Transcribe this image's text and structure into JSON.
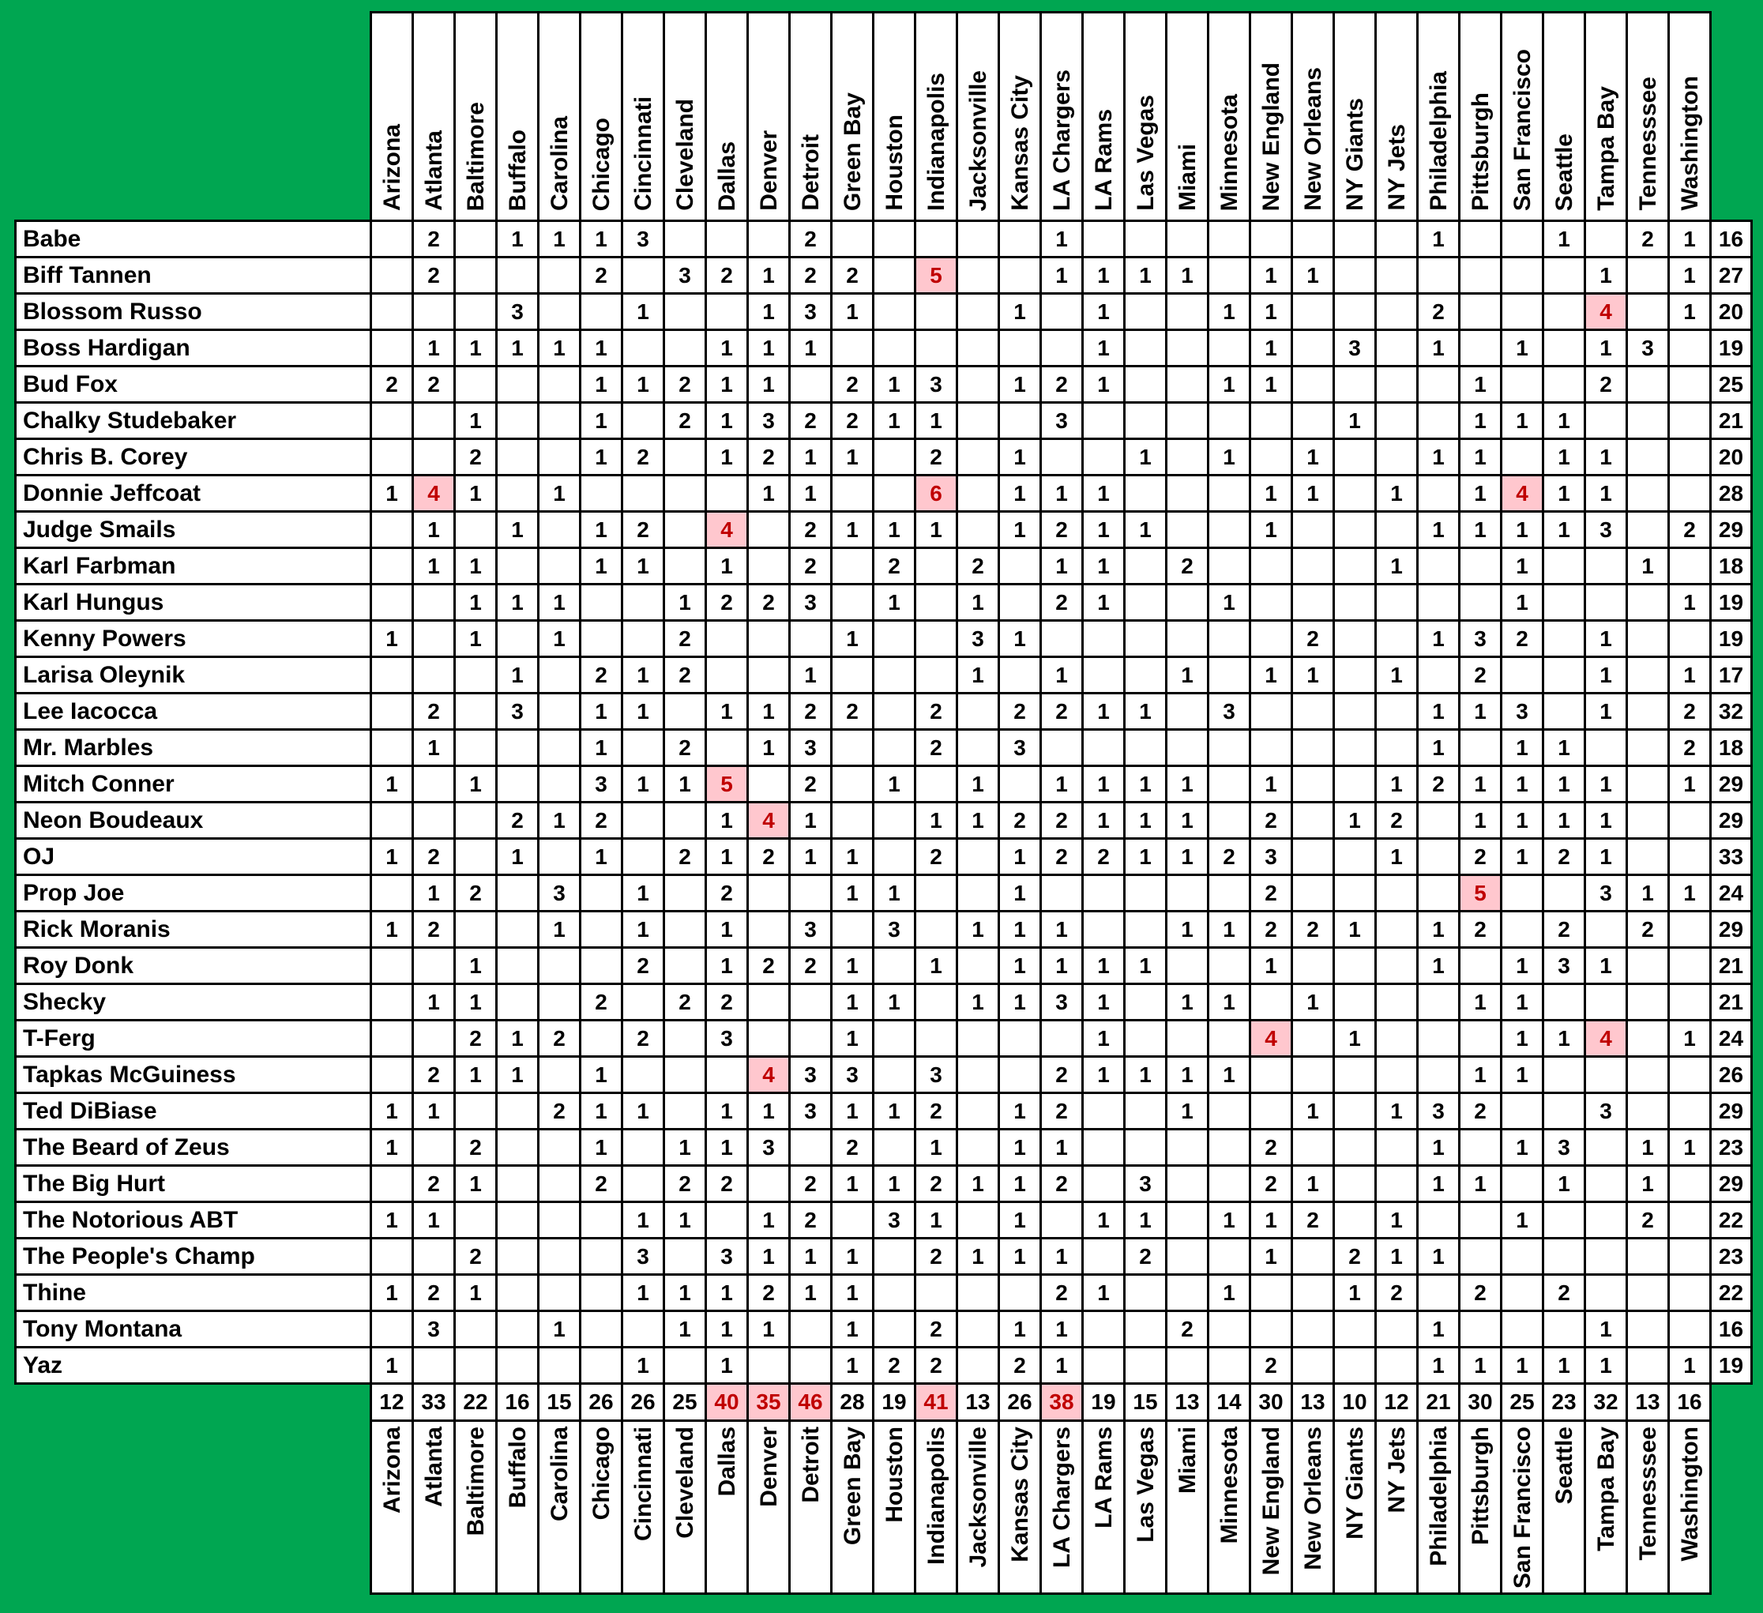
{
  "colors": {
    "background_green": "#00A651",
    "grid_line": "#000000",
    "cell_bg": "#FFFFFF",
    "highlight_bg": "#FFC7CE",
    "highlight_text": "#C00000",
    "text": "#000000"
  },
  "table": {
    "teams": [
      "Arizona",
      "Atlanta",
      "Baltimore",
      "Buffalo",
      "Carolina",
      "Chicago",
      "Cincinnati",
      "Cleveland",
      "Dallas",
      "Denver",
      "Detroit",
      "Green Bay",
      "Houston",
      "Indianapolis",
      "Jacksonville",
      "Kansas City",
      "LA Chargers",
      "LA Rams",
      "Las Vegas",
      "Miami",
      "Minnesota",
      "New England",
      "New Orleans",
      "NY Giants",
      "NY Jets",
      "Philadelphia",
      "Pittsburgh",
      "San Francisco",
      "Seattle",
      "Tampa Bay",
      "Tennesssee",
      "Washington"
    ],
    "players": [
      "Babe",
      "Biff Tannen",
      "Blossom Russo",
      "Boss Hardigan",
      "Bud Fox",
      "Chalky Studebaker",
      "Chris B. Corey",
      "Donnie Jeffcoat",
      "Judge Smails",
      "Karl Farbman",
      "Karl Hungus",
      "Kenny Powers",
      "Larisa Oleynik",
      "Lee Iacocca",
      "Mr. Marbles",
      "Mitch Conner",
      "Neon Boudeaux",
      "OJ",
      "Prop Joe",
      "Rick Moranis",
      "Roy Donk",
      "Shecky",
      "T-Ferg",
      "Tapkas McGuiness",
      "Ted DiBiase",
      "The Beard of Zeus",
      "The Big Hurt",
      "The Notorious ABT",
      "The People's Champ",
      "Thine",
      "Tony Montana",
      "Yaz"
    ],
    "matrix": [
      [
        0,
        2,
        0,
        1,
        1,
        1,
        3,
        0,
        0,
        0,
        2,
        0,
        0,
        0,
        0,
        0,
        1,
        0,
        0,
        0,
        0,
        0,
        0,
        0,
        0,
        1,
        0,
        0,
        1,
        0,
        2,
        1
      ],
      [
        0,
        2,
        0,
        0,
        0,
        2,
        0,
        3,
        2,
        1,
        2,
        2,
        0,
        5,
        0,
        0,
        1,
        1,
        1,
        1,
        0,
        1,
        1,
        0,
        0,
        0,
        0,
        0,
        0,
        1,
        0,
        1
      ],
      [
        0,
        0,
        0,
        3,
        0,
        0,
        1,
        0,
        0,
        1,
        3,
        1,
        0,
        0,
        0,
        1,
        0,
        1,
        0,
        0,
        1,
        1,
        0,
        0,
        0,
        2,
        0,
        0,
        0,
        4,
        0,
        1
      ],
      [
        0,
        1,
        1,
        1,
        1,
        1,
        0,
        0,
        1,
        1,
        1,
        0,
        0,
        0,
        0,
        0,
        0,
        1,
        0,
        0,
        0,
        1,
        0,
        3,
        0,
        1,
        0,
        1,
        0,
        1,
        3,
        0
      ],
      [
        2,
        2,
        0,
        0,
        0,
        1,
        1,
        2,
        1,
        1,
        0,
        2,
        1,
        3,
        0,
        1,
        2,
        1,
        0,
        0,
        1,
        1,
        0,
        0,
        0,
        0,
        1,
        0,
        0,
        2,
        0,
        0
      ],
      [
        0,
        0,
        1,
        0,
        0,
        1,
        0,
        2,
        1,
        3,
        2,
        2,
        1,
        1,
        0,
        0,
        3,
        0,
        0,
        0,
        0,
        0,
        0,
        1,
        0,
        0,
        1,
        1,
        1,
        0,
        0,
        0
      ],
      [
        0,
        0,
        2,
        0,
        0,
        1,
        2,
        0,
        1,
        2,
        1,
        1,
        0,
        2,
        0,
        1,
        0,
        0,
        1,
        0,
        1,
        0,
        1,
        0,
        0,
        1,
        1,
        0,
        1,
        1,
        0,
        0
      ],
      [
        1,
        4,
        1,
        0,
        1,
        0,
        0,
        0,
        0,
        1,
        1,
        0,
        0,
        6,
        0,
        1,
        1,
        1,
        0,
        0,
        0,
        1,
        1,
        0,
        1,
        0,
        1,
        4,
        1,
        1,
        0,
        0
      ],
      [
        0,
        1,
        0,
        1,
        0,
        1,
        2,
        0,
        4,
        0,
        2,
        1,
        1,
        1,
        0,
        1,
        2,
        1,
        1,
        0,
        0,
        1,
        0,
        0,
        0,
        1,
        1,
        1,
        1,
        3,
        0,
        2
      ],
      [
        0,
        1,
        1,
        0,
        0,
        1,
        1,
        0,
        1,
        0,
        2,
        0,
        2,
        0,
        2,
        0,
        1,
        1,
        0,
        2,
        0,
        0,
        0,
        0,
        1,
        0,
        0,
        1,
        0,
        0,
        1,
        0
      ],
      [
        0,
        0,
        1,
        1,
        1,
        0,
        0,
        1,
        2,
        2,
        3,
        0,
        1,
        0,
        1,
        0,
        2,
        1,
        0,
        0,
        1,
        0,
        0,
        0,
        0,
        0,
        0,
        1,
        0,
        0,
        0,
        1
      ],
      [
        1,
        0,
        1,
        0,
        1,
        0,
        0,
        2,
        0,
        0,
        0,
        1,
        0,
        0,
        3,
        1,
        0,
        0,
        0,
        0,
        0,
        0,
        2,
        0,
        0,
        1,
        3,
        2,
        0,
        1,
        0,
        0
      ],
      [
        0,
        0,
        0,
        1,
        0,
        2,
        1,
        2,
        0,
        0,
        1,
        0,
        0,
        0,
        1,
        0,
        1,
        0,
        0,
        1,
        0,
        1,
        1,
        0,
        1,
        0,
        2,
        0,
        0,
        1,
        0,
        1
      ],
      [
        0,
        2,
        0,
        3,
        0,
        1,
        1,
        0,
        1,
        1,
        2,
        2,
        0,
        2,
        0,
        2,
        2,
        1,
        1,
        0,
        3,
        0,
        0,
        0,
        0,
        1,
        1,
        3,
        0,
        1,
        0,
        2
      ],
      [
        0,
        1,
        0,
        0,
        0,
        1,
        0,
        2,
        0,
        1,
        3,
        0,
        0,
        2,
        0,
        3,
        0,
        0,
        0,
        0,
        0,
        0,
        0,
        0,
        0,
        1,
        0,
        1,
        1,
        0,
        0,
        2
      ],
      [
        1,
        0,
        1,
        0,
        0,
        3,
        1,
        1,
        5,
        0,
        2,
        0,
        1,
        0,
        1,
        0,
        1,
        1,
        1,
        1,
        0,
        1,
        0,
        0,
        1,
        2,
        1,
        1,
        1,
        1,
        0,
        1
      ],
      [
        0,
        0,
        0,
        2,
        1,
        2,
        0,
        0,
        1,
        4,
        1,
        0,
        0,
        1,
        1,
        2,
        2,
        1,
        1,
        1,
        0,
        2,
        0,
        1,
        2,
        0,
        1,
        1,
        1,
        1,
        0,
        0
      ],
      [
        1,
        2,
        0,
        1,
        0,
        1,
        0,
        2,
        1,
        2,
        1,
        1,
        0,
        2,
        0,
        1,
        2,
        2,
        1,
        1,
        2,
        3,
        0,
        0,
        1,
        0,
        2,
        1,
        2,
        1,
        0,
        0
      ],
      [
        0,
        1,
        2,
        0,
        3,
        0,
        1,
        0,
        2,
        0,
        0,
        1,
        1,
        0,
        0,
        1,
        0,
        0,
        0,
        0,
        0,
        2,
        0,
        0,
        0,
        0,
        5,
        0,
        0,
        3,
        1,
        1
      ],
      [
        1,
        2,
        0,
        0,
        1,
        0,
        1,
        0,
        1,
        0,
        3,
        0,
        3,
        0,
        1,
        1,
        1,
        0,
        0,
        1,
        1,
        2,
        2,
        1,
        0,
        1,
        2,
        0,
        2,
        0,
        2,
        0
      ],
      [
        0,
        0,
        1,
        0,
        0,
        0,
        2,
        0,
        1,
        2,
        2,
        1,
        0,
        1,
        0,
        1,
        1,
        1,
        1,
        0,
        0,
        1,
        0,
        0,
        0,
        1,
        0,
        1,
        3,
        1,
        0,
        0
      ],
      [
        0,
        1,
        1,
        0,
        0,
        2,
        0,
        2,
        2,
        0,
        0,
        1,
        1,
        0,
        1,
        1,
        3,
        1,
        0,
        1,
        1,
        0,
        1,
        0,
        0,
        0,
        1,
        1,
        0,
        0,
        0,
        0
      ],
      [
        0,
        0,
        2,
        1,
        2,
        0,
        2,
        0,
        3,
        0,
        0,
        1,
        0,
        0,
        0,
        0,
        0,
        1,
        0,
        0,
        0,
        4,
        0,
        1,
        0,
        0,
        0,
        1,
        1,
        4,
        0,
        1
      ],
      [
        0,
        2,
        1,
        1,
        0,
        1,
        0,
        0,
        0,
        4,
        3,
        3,
        0,
        3,
        0,
        0,
        2,
        1,
        1,
        1,
        1,
        0,
        0,
        0,
        0,
        0,
        1,
        1,
        0,
        0,
        0,
        0
      ],
      [
        1,
        1,
        0,
        0,
        2,
        1,
        1,
        0,
        1,
        1,
        3,
        1,
        1,
        2,
        0,
        1,
        2,
        0,
        0,
        1,
        0,
        0,
        1,
        0,
        1,
        3,
        2,
        0,
        0,
        3,
        0,
        0
      ],
      [
        1,
        0,
        2,
        0,
        0,
        1,
        0,
        1,
        1,
        3,
        0,
        2,
        0,
        1,
        0,
        1,
        1,
        0,
        0,
        0,
        0,
        2,
        0,
        0,
        0,
        1,
        0,
        1,
        3,
        0,
        1,
        1
      ],
      [
        0,
        2,
        1,
        0,
        0,
        2,
        0,
        2,
        2,
        0,
        2,
        1,
        1,
        2,
        1,
        1,
        2,
        0,
        3,
        0,
        0,
        2,
        1,
        0,
        0,
        1,
        1,
        0,
        1,
        0,
        1,
        0
      ],
      [
        1,
        1,
        0,
        0,
        0,
        0,
        1,
        1,
        0,
        1,
        2,
        0,
        3,
        1,
        0,
        1,
        0,
        1,
        1,
        0,
        1,
        1,
        2,
        0,
        1,
        0,
        0,
        1,
        0,
        0,
        2,
        0
      ],
      [
        0,
        0,
        2,
        0,
        0,
        0,
        3,
        0,
        3,
        1,
        1,
        1,
        0,
        2,
        1,
        1,
        1,
        0,
        2,
        0,
        0,
        1,
        0,
        2,
        1,
        1,
        0,
        0,
        0,
        0,
        0,
        0
      ],
      [
        1,
        2,
        1,
        0,
        0,
        0,
        1,
        1,
        1,
        2,
        1,
        1,
        0,
        0,
        0,
        0,
        2,
        1,
        0,
        0,
        1,
        0,
        0,
        1,
        2,
        0,
        2,
        0,
        2,
        0,
        0,
        0
      ],
      [
        0,
        3,
        0,
        0,
        1,
        0,
        0,
        1,
        1,
        1,
        0,
        1,
        0,
        2,
        0,
        1,
        1,
        0,
        0,
        2,
        0,
        0,
        0,
        0,
        0,
        1,
        0,
        0,
        0,
        1,
        0,
        0
      ],
      [
        1,
        0,
        0,
        0,
        0,
        0,
        1,
        0,
        1,
        0,
        0,
        1,
        2,
        2,
        0,
        2,
        1,
        0,
        0,
        0,
        0,
        2,
        0,
        0,
        0,
        1,
        1,
        1,
        1,
        1,
        0,
        1
      ]
    ],
    "row_totals": [
      16,
      27,
      20,
      19,
      25,
      21,
      20,
      28,
      29,
      18,
      19,
      19,
      17,
      32,
      18,
      29,
      29,
      33,
      24,
      29,
      21,
      21,
      24,
      26,
      29,
      23,
      29,
      22,
      23,
      22,
      16,
      19
    ],
    "col_totals": [
      12,
      33,
      22,
      16,
      15,
      26,
      26,
      25,
      40,
      35,
      46,
      28,
      19,
      41,
      13,
      26,
      38,
      19,
      15,
      13,
      14,
      30,
      13,
      10,
      12,
      21,
      30,
      25,
      23,
      32,
      13,
      16
    ],
    "highlights": {
      "cells": [
        [
          1,
          13
        ],
        [
          2,
          29
        ],
        [
          7,
          1
        ],
        [
          7,
          13
        ],
        [
          7,
          27
        ],
        [
          8,
          8
        ],
        [
          15,
          8
        ],
        [
          16,
          9
        ],
        [
          18,
          26
        ],
        [
          22,
          21
        ],
        [
          22,
          29
        ],
        [
          23,
          9
        ]
      ],
      "total_columns": [
        8,
        9,
        10,
        13,
        16
      ]
    }
  }
}
